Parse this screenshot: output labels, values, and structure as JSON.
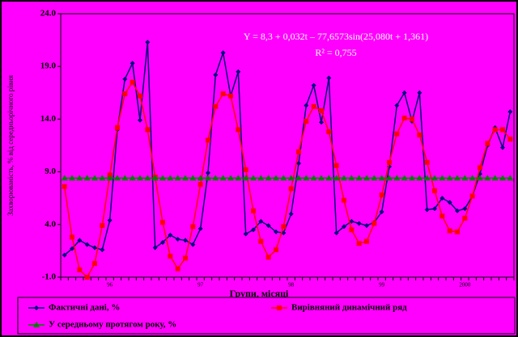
{
  "chart_data": {
    "type": "line",
    "equation": "Y = 8,3 + 0,032t – 77,6573sin(25,080t + 1,361)",
    "r_squared": "R² = 0,755",
    "x_label": "Групи, місяці",
    "y_label": "Захворюваність, % від середньорічного рівня",
    "categories": [
      null,
      null,
      null,
      null,
      null,
      null,
      "96",
      null,
      null,
      null,
      null,
      null,
      null,
      null,
      null,
      null,
      null,
      null,
      "97",
      null,
      null,
      null,
      null,
      null,
      null,
      null,
      null,
      null,
      null,
      null,
      "98",
      null,
      null,
      null,
      null,
      null,
      null,
      null,
      null,
      null,
      null,
      null,
      "99",
      null,
      null,
      null,
      null,
      null,
      null,
      null,
      null,
      null,
      null,
      "2000",
      null,
      null,
      null,
      null,
      null,
      null
    ],
    "ylim": [
      -1,
      24
    ],
    "yticks": [
      {
        "value": -1,
        "label": "-1.0"
      },
      {
        "value": 4,
        "label": "4.0"
      },
      {
        "value": 9,
        "label": "9.0"
      },
      {
        "value": 14,
        "label": "14.0"
      },
      {
        "value": 19,
        "label": "19.0"
      },
      {
        "value": 24,
        "label": "24.0"
      }
    ],
    "legend": "bottom",
    "series": [
      {
        "name": "Фактичні дані, %",
        "color": "#000080",
        "marker": "diamond",
        "values": [
          1.1,
          1.7,
          2.5,
          2.1,
          1.8,
          1.6,
          4.4,
          13.0,
          17.8,
          19.3,
          13.9,
          21.3,
          1.8,
          2.3,
          3.0,
          2.6,
          2.5,
          2.1,
          3.6,
          8.9,
          18.2,
          20.3,
          16.2,
          18.5,
          3.1,
          3.5,
          4.3,
          3.9,
          3.3,
          3.2,
          5.0,
          9.8,
          15.3,
          17.2,
          13.7,
          17.9,
          3.2,
          3.8,
          4.3,
          4.1,
          3.9,
          4.2,
          5.2,
          9.5,
          15.3,
          16.5,
          13.8,
          16.5,
          5.4,
          5.5,
          6.5,
          6.1,
          5.3,
          5.5,
          6.7,
          8.8,
          11.5,
          13.2,
          11.3,
          14.7
        ]
      },
      {
        "name": "Вирівняний динамічний ряд",
        "color": "#ff0000",
        "marker": "square",
        "values": [
          7.6,
          2.8,
          -0.3,
          -1.0,
          0.3,
          3.9,
          8.7,
          13.2,
          16.4,
          17.5,
          16.2,
          13.0,
          8.5,
          4.2,
          1.0,
          -0.2,
          0.8,
          3.8,
          7.8,
          12.0,
          15.2,
          16.4,
          16.2,
          13.0,
          9.2,
          5.3,
          2.4,
          0.9,
          1.6,
          3.8,
          7.4,
          10.9,
          13.8,
          15.2,
          14.8,
          12.8,
          9.6,
          6.3,
          3.5,
          2.2,
          2.4,
          4.1,
          6.8,
          9.9,
          12.6,
          14.1,
          14.0,
          12.5,
          9.9,
          7.2,
          4.8,
          3.4,
          3.3,
          4.6,
          6.7,
          9.4,
          11.7,
          13.0,
          13.0,
          12.1
        ]
      },
      {
        "name": "У середньому протягом року, %",
        "color": "#008000",
        "marker": "triangle",
        "values": [
          8.4,
          8.4,
          8.4,
          8.4,
          8.4,
          8.4,
          8.4,
          8.4,
          8.4,
          8.4,
          8.4,
          8.4,
          8.4,
          8.4,
          8.4,
          8.4,
          8.4,
          8.4,
          8.4,
          8.4,
          8.4,
          8.4,
          8.4,
          8.4,
          8.4,
          8.4,
          8.4,
          8.4,
          8.4,
          8.4,
          8.4,
          8.4,
          8.4,
          8.4,
          8.4,
          8.4,
          8.4,
          8.4,
          8.4,
          8.4,
          8.4,
          8.4,
          8.4,
          8.4,
          8.4,
          8.4,
          8.4,
          8.4,
          8.4,
          8.4,
          8.4,
          8.4,
          8.4,
          8.4,
          8.4,
          8.4,
          8.4,
          8.4,
          8.4,
          8.4
        ]
      }
    ]
  }
}
